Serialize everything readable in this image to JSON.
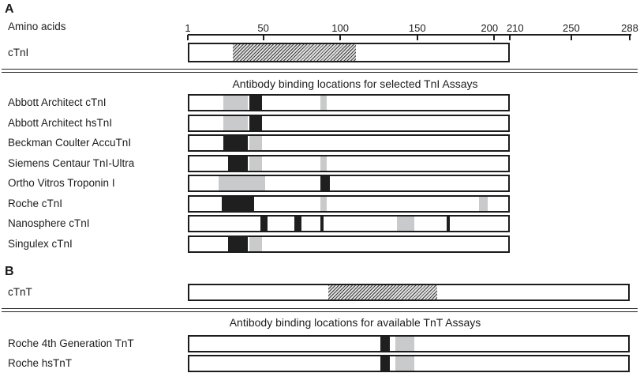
{
  "panel_a": {
    "label": "A",
    "axis_title": "Amino acids",
    "axis": {
      "min": 1,
      "max": 288,
      "ticks": [
        1,
        50,
        100,
        150,
        200,
        210,
        250,
        288
      ]
    },
    "protein": {
      "label": "cTnI",
      "start": 1,
      "end": 210,
      "hatch_start": 30,
      "hatch_end": 110
    },
    "header": "Antibody binding locations for selected TnI Assays",
    "assays": [
      {
        "label": "Abbott Architect cTnI",
        "marks": [
          {
            "start": 24,
            "end": 40,
            "type": "gray"
          },
          {
            "start": 41,
            "end": 49,
            "type": "black"
          },
          {
            "start": 87,
            "end": 91,
            "type": "gray"
          }
        ]
      },
      {
        "label": "Abbott Architect hsTnI",
        "marks": [
          {
            "start": 24,
            "end": 40,
            "type": "gray"
          },
          {
            "start": 41,
            "end": 49,
            "type": "black"
          }
        ]
      },
      {
        "label": "Beckman Coulter AccuTnI",
        "marks": [
          {
            "start": 24,
            "end": 40,
            "type": "black"
          },
          {
            "start": 41,
            "end": 49,
            "type": "gray"
          }
        ]
      },
      {
        "label": "Siemens Centaur TnI-Ultra",
        "marks": [
          {
            "start": 27,
            "end": 40,
            "type": "black"
          },
          {
            "start": 41,
            "end": 49,
            "type": "gray"
          },
          {
            "start": 87,
            "end": 91,
            "type": "gray"
          }
        ]
      },
      {
        "label": "Ortho Vitros Troponin I",
        "marks": [
          {
            "start": 21,
            "end": 51,
            "type": "gray"
          },
          {
            "start": 87,
            "end": 93,
            "type": "black"
          }
        ]
      },
      {
        "label": "Roche cTnI",
        "marks": [
          {
            "start": 23,
            "end": 44,
            "type": "black"
          },
          {
            "start": 87,
            "end": 91,
            "type": "gray"
          },
          {
            "start": 190,
            "end": 196,
            "type": "gray"
          }
        ]
      },
      {
        "label": "Nanosphere cTnI",
        "marks": [
          {
            "start": 48,
            "end": 53,
            "type": "black"
          },
          {
            "start": 70,
            "end": 75,
            "type": "black"
          },
          {
            "start": 87,
            "end": 89,
            "type": "black"
          },
          {
            "start": 137,
            "end": 148,
            "type": "gray"
          },
          {
            "start": 169,
            "end": 171,
            "type": "black"
          }
        ]
      },
      {
        "label": "Singulex cTnI",
        "marks": [
          {
            "start": 27,
            "end": 40,
            "type": "black"
          },
          {
            "start": 41,
            "end": 49,
            "type": "gray"
          }
        ]
      }
    ]
  },
  "panel_b": {
    "label": "B",
    "protein": {
      "label": "cTnT",
      "start": 1,
      "end": 288,
      "hatch_start": 92,
      "hatch_end": 163
    },
    "header": "Antibody binding locations for available TnT Assays",
    "assays": [
      {
        "label": "Roche 4th Generation TnT",
        "marks": [
          {
            "start": 126,
            "end": 132,
            "type": "black"
          },
          {
            "start": 136,
            "end": 148,
            "type": "gray"
          }
        ]
      },
      {
        "label": "Roche hsTnT",
        "marks": [
          {
            "start": 126,
            "end": 132,
            "type": "black"
          },
          {
            "start": 136,
            "end": 148,
            "type": "gray"
          }
        ]
      }
    ]
  },
  "colors": {
    "black_mark": "#1f1f1f",
    "gray_mark": "#c9cacb",
    "outline": "#1c1c1c"
  }
}
